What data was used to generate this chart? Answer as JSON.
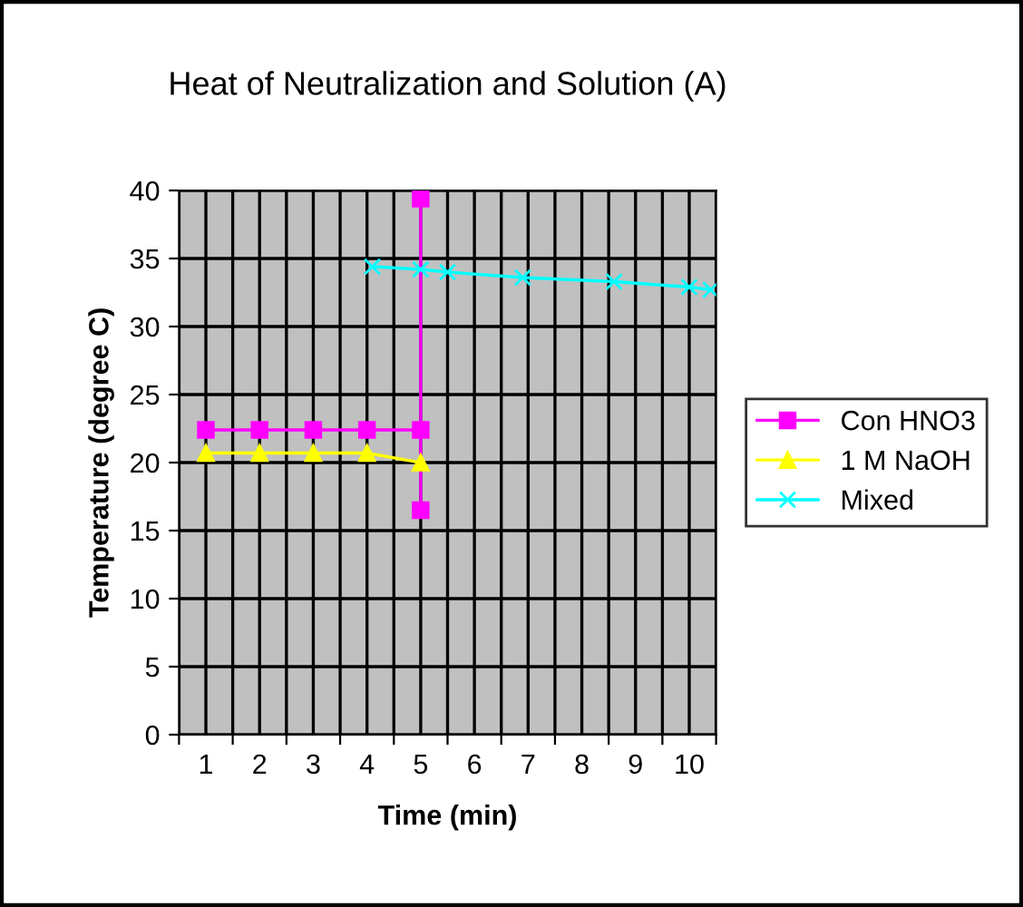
{
  "chart_data": {
    "type": "line",
    "title": "Heat of Neutralization and Solution (A)",
    "xlabel": "Time (min)",
    "ylabel": "Temperature (degree C)",
    "xlim": [
      0.5,
      10.5
    ],
    "xticks": [
      {
        "value": 0.5,
        "label": null
      },
      1,
      {
        "value": 1.5,
        "label": null
      },
      2,
      {
        "value": 2.5,
        "label": null
      },
      3,
      {
        "value": 3.5,
        "label": null
      },
      4,
      {
        "value": 4.5,
        "label": null
      },
      5,
      {
        "value": 5.5,
        "label": null
      },
      6,
      {
        "value": 6.5,
        "label": null
      },
      7,
      {
        "value": 7.5,
        "label": null
      },
      8,
      {
        "value": 8.5,
        "label": null
      },
      9,
      {
        "value": 9.5,
        "label": null
      },
      10,
      {
        "value": 10.5,
        "label": null
      }
    ],
    "ylim": [
      0,
      40
    ],
    "yticks": [
      0,
      5,
      10,
      15,
      20,
      25,
      30,
      35,
      40
    ],
    "grid": true,
    "legend": "right",
    "series": [
      {
        "name": "Con HNO3",
        "color": "#ff00ff",
        "marker": "square",
        "x": [
          1,
          2,
          3,
          4,
          5,
          5,
          5
        ],
        "values": [
          22.4,
          22.4,
          22.4,
          22.4,
          22.4,
          39.4,
          16.5
        ]
      },
      {
        "name": "1 M NaOH",
        "color": "#ffff00",
        "marker": "triangle",
        "x": [
          1,
          2,
          3,
          4,
          5
        ],
        "values": [
          20.7,
          20.7,
          20.7,
          20.7,
          20.0
        ]
      },
      {
        "name": "Mixed",
        "color": "#00ffff",
        "marker": "cross",
        "x": [
          4.1,
          5.0,
          5.5,
          6.9,
          8.6,
          10.0,
          10.4
        ],
        "values": [
          34.4,
          34.2,
          34.0,
          33.6,
          33.3,
          32.9,
          32.7
        ]
      }
    ]
  }
}
